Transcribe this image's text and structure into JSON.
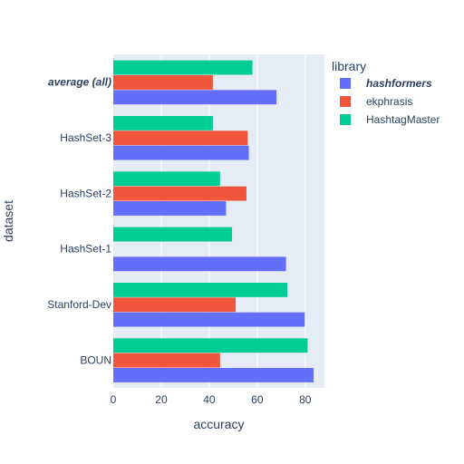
{
  "chart_data": {
    "type": "bar",
    "orientation": "horizontal",
    "barmode": "group",
    "categories": [
      "BOUN",
      "Stanford-Dev",
      "HashSet-1",
      "HashSet-2",
      "HashSet-3",
      "average (all)"
    ],
    "emphasized_category": "average (all)",
    "series": [
      {
        "name": "hashformers",
        "emphasized": true,
        "color": "#636efa",
        "values": [
          83.5,
          79.8,
          72.0,
          47.0,
          56.5,
          68.0
        ]
      },
      {
        "name": "ekphrasis",
        "emphasized": false,
        "color": "#ef553b",
        "values": [
          44.5,
          51.0,
          null,
          55.5,
          56.0,
          41.5
        ]
      },
      {
        "name": "HashtagMaster",
        "emphasized": false,
        "color": "#00cc96",
        "values": [
          81.0,
          72.5,
          49.5,
          44.5,
          41.5,
          58.0
        ]
      }
    ],
    "xlabel": "accuracy",
    "ylabel": "dataset",
    "xlim": [
      0,
      88
    ],
    "xticks": [
      0,
      20,
      40,
      60,
      80
    ],
    "legend_title": "library",
    "legend_position": "right",
    "grid": true,
    "plot_background": "#e5ecf6",
    "gridline_color": "#ffffff"
  }
}
